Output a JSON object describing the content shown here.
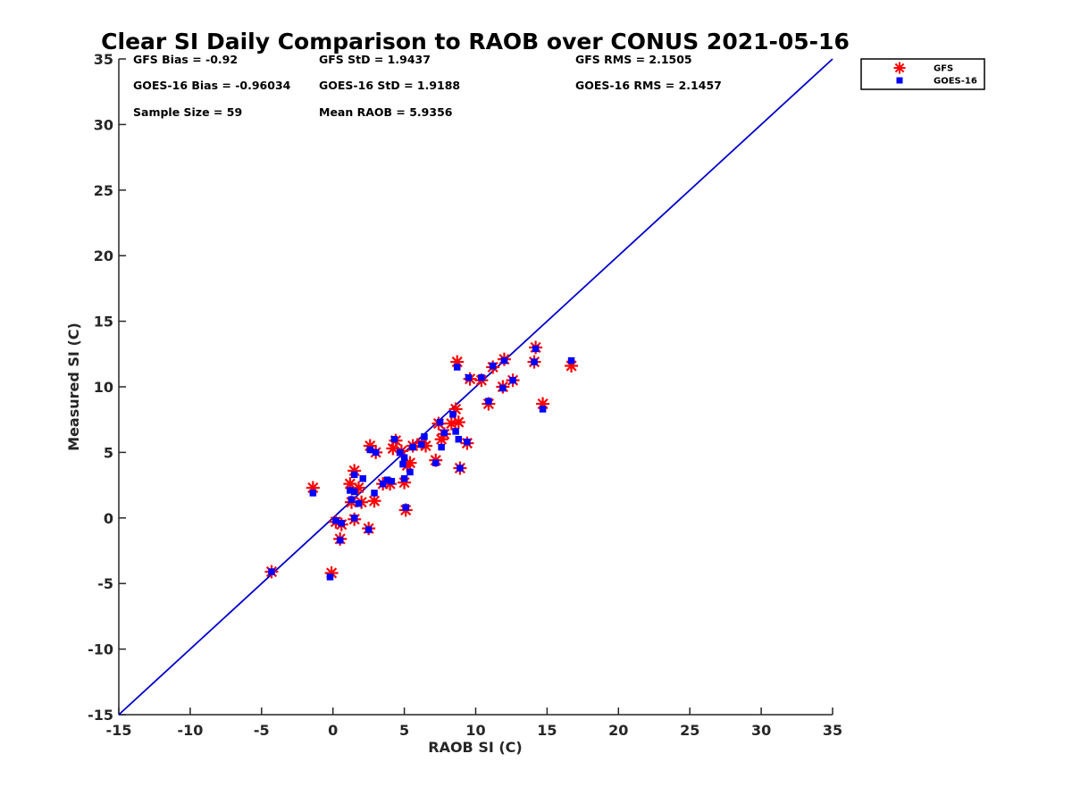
{
  "chart_data": {
    "type": "scatter",
    "title": "Clear SI Daily Comparison to RAOB over CONUS 2021-05-16",
    "xlabel": "RAOB SI (C)",
    "ylabel": "Measured SI (C)",
    "xlim": [
      -15,
      35
    ],
    "ylim": [
      -15,
      35
    ],
    "xticks": [
      -15,
      -10,
      -5,
      0,
      5,
      10,
      15,
      20,
      25,
      30,
      35
    ],
    "yticks": [
      -15,
      -10,
      -5,
      0,
      5,
      10,
      15,
      20,
      25,
      30,
      35
    ],
    "xtick_labels": [
      "-15",
      "-10",
      "-5",
      "0",
      "5",
      "10",
      "15",
      "20",
      "25",
      "30",
      "35"
    ],
    "ytick_labels": [
      "-15",
      "-10",
      "-5",
      "0",
      "5",
      "10",
      "15",
      "20",
      "25",
      "30",
      "35"
    ],
    "grid": false,
    "legend_position": "outside top-right",
    "one_to_one_line": {
      "from": [
        -15,
        -15
      ],
      "to": [
        35,
        35
      ],
      "color": "#0000cc"
    },
    "stats": [
      {
        "text": "GFS Bias = -0.92"
      },
      {
        "text": "GFS StD = 1.9437"
      },
      {
        "text": "GFS RMS = 2.1505"
      },
      {
        "text": "GOES-16 Bias = -0.96034"
      },
      {
        "text": "GOES-16 StD = 1.9188"
      },
      {
        "text": "GOES-16 RMS = 2.1457"
      },
      {
        "text": "Sample Size = 59"
      },
      {
        "text": "Mean RAOB = 5.9356"
      }
    ],
    "series": [
      {
        "name": "GFS",
        "marker": "asterisk",
        "color": "#ff0000",
        "points": [
          [
            -4.3,
            -4.1
          ],
          [
            -1.4,
            2.3
          ],
          [
            -0.1,
            -4.2
          ],
          [
            0.2,
            -0.3
          ],
          [
            0.5,
            -1.6
          ],
          [
            0.6,
            -0.5
          ],
          [
            1.2,
            2.6
          ],
          [
            1.3,
            1.2
          ],
          [
            1.5,
            3.6
          ],
          [
            1.5,
            -0.1
          ],
          [
            1.8,
            2.3
          ],
          [
            2.0,
            1.2
          ],
          [
            2.5,
            -0.8
          ],
          [
            2.6,
            5.5
          ],
          [
            2.9,
            1.3
          ],
          [
            3.0,
            5.0
          ],
          [
            3.5,
            2.6
          ],
          [
            4.0,
            2.6
          ],
          [
            4.2,
            5.3
          ],
          [
            4.4,
            5.9
          ],
          [
            4.8,
            5.1
          ],
          [
            5.0,
            2.7
          ],
          [
            5.1,
            0.6
          ],
          [
            5.2,
            4.0
          ],
          [
            5.4,
            4.2
          ],
          [
            5.6,
            5.5
          ],
          [
            6.2,
            5.7
          ],
          [
            6.5,
            5.5
          ],
          [
            7.2,
            4.4
          ],
          [
            7.4,
            7.2
          ],
          [
            7.6,
            6.0
          ],
          [
            7.8,
            6.4
          ],
          [
            8.3,
            7.2
          ],
          [
            8.6,
            8.3
          ],
          [
            8.8,
            7.3
          ],
          [
            8.7,
            11.9
          ],
          [
            8.9,
            3.8
          ],
          [
            9.4,
            5.7
          ],
          [
            9.6,
            10.6
          ],
          [
            10.4,
            10.5
          ],
          [
            10.9,
            8.7
          ],
          [
            11.2,
            11.5
          ],
          [
            11.9,
            10.0
          ],
          [
            12.0,
            12.1
          ],
          [
            12.6,
            10.5
          ],
          [
            14.1,
            11.9
          ],
          [
            14.2,
            13.0
          ],
          [
            14.7,
            8.7
          ],
          [
            16.7,
            11.6
          ]
        ]
      },
      {
        "name": "GOES-16",
        "marker": "square",
        "color": "#0000ff",
        "points": [
          [
            -4.3,
            -4.1
          ],
          [
            -1.4,
            1.9
          ],
          [
            -0.2,
            -4.5
          ],
          [
            0.2,
            -0.2
          ],
          [
            0.5,
            -1.7
          ],
          [
            0.6,
            -0.4
          ],
          [
            1.2,
            2.1
          ],
          [
            1.3,
            1.4
          ],
          [
            1.5,
            3.3
          ],
          [
            1.5,
            0.0
          ],
          [
            1.5,
            2.0
          ],
          [
            1.8,
            1.1
          ],
          [
            2.1,
            3.0
          ],
          [
            2.5,
            -0.9
          ],
          [
            2.6,
            5.2
          ],
          [
            2.9,
            1.9
          ],
          [
            3.0,
            5.0
          ],
          [
            3.5,
            2.6
          ],
          [
            3.8,
            2.9
          ],
          [
            4.1,
            2.8
          ],
          [
            4.3,
            6.0
          ],
          [
            4.7,
            5.0
          ],
          [
            4.9,
            4.1
          ],
          [
            5.0,
            3.0
          ],
          [
            5.0,
            4.6
          ],
          [
            5.1,
            0.8
          ],
          [
            5.4,
            3.5
          ],
          [
            5.6,
            5.4
          ],
          [
            6.2,
            5.6
          ],
          [
            6.4,
            6.2
          ],
          [
            7.2,
            4.2
          ],
          [
            7.5,
            7.3
          ],
          [
            7.6,
            5.4
          ],
          [
            7.8,
            6.5
          ],
          [
            8.4,
            7.9
          ],
          [
            8.6,
            6.6
          ],
          [
            8.7,
            11.5
          ],
          [
            8.8,
            6.0
          ],
          [
            8.9,
            3.8
          ],
          [
            9.4,
            5.8
          ],
          [
            9.5,
            10.7
          ],
          [
            10.4,
            10.7
          ],
          [
            10.9,
            8.9
          ],
          [
            11.2,
            11.6
          ],
          [
            11.9,
            9.9
          ],
          [
            12.0,
            12.0
          ],
          [
            12.6,
            10.5
          ],
          [
            14.1,
            11.9
          ],
          [
            14.2,
            12.9
          ],
          [
            14.7,
            8.3
          ],
          [
            16.7,
            12.0
          ]
        ]
      }
    ]
  }
}
